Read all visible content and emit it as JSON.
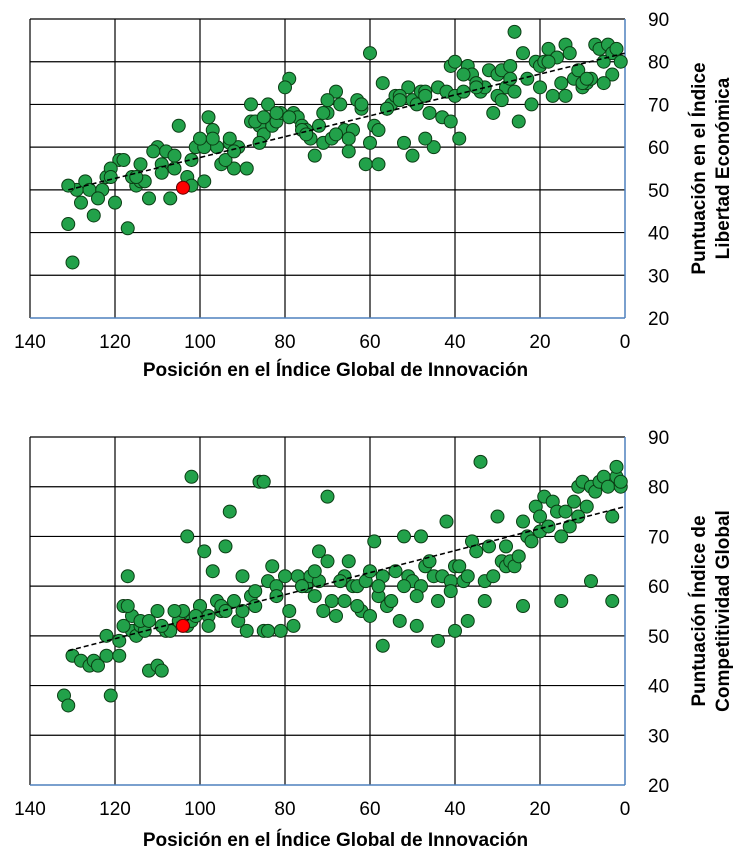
{
  "chart_data": [
    {
      "type": "scatter",
      "xlabel": "Posición en el Índice Global de Innovación",
      "ylabel_lines": [
        "Puntuación en el Índice",
        "Libertad Económica"
      ],
      "xlim": [
        140,
        0
      ],
      "ylim": [
        20,
        90
      ],
      "xticks": [
        140,
        120,
        100,
        80,
        60,
        40,
        20,
        0
      ],
      "yticks": [
        20,
        30,
        40,
        50,
        60,
        70,
        80,
        90
      ],
      "grid": true,
      "point_color": "#22a14a",
      "highlight_color": "#ff0000",
      "trend": {
        "x": [
          131,
          0
        ],
        "y": [
          50,
          82
        ]
      },
      "highlight": {
        "x": 104,
        "y": 50.5
      },
      "x": [
        131,
        130,
        129,
        127,
        126,
        125,
        123,
        122,
        120,
        119,
        117,
        115,
        114,
        112,
        110,
        109,
        108,
        106,
        105,
        103,
        102,
        100,
        99,
        97,
        96,
        95,
        93,
        92,
        91,
        89,
        88,
        86,
        85,
        83,
        82,
        81,
        79,
        78,
        77,
        76,
        75,
        73,
        72,
        71,
        69,
        68,
        67,
        66,
        64,
        63,
        62,
        61,
        60,
        59,
        58,
        56,
        55,
        54,
        52,
        51,
        50,
        48,
        47,
        46,
        44,
        43,
        42,
        41,
        40,
        38,
        37,
        36,
        34,
        33,
        32,
        30,
        29,
        28,
        27,
        26,
        24,
        23,
        22,
        21,
        20,
        18,
        17,
        16,
        14,
        13,
        12,
        10,
        9,
        8,
        7,
        6,
        5,
        4,
        3,
        2,
        1,
        124,
        118,
        116,
        111,
        107,
        101,
        98,
        94,
        87,
        84,
        80,
        74,
        70,
        65,
        57,
        53,
        49,
        45,
        39,
        35,
        31,
        25,
        19,
        15,
        11,
        102,
        88,
        79,
        71,
        65,
        60,
        50,
        41,
        30,
        20,
        10,
        3,
        128,
        121,
        113,
        106,
        99,
        92,
        86,
        76,
        68,
        62,
        56,
        47,
        38,
        29,
        18,
        9,
        121,
        115,
        109,
        100,
        93,
        85,
        75,
        58,
        47,
        35,
        26,
        14,
        5,
        131,
        114,
        97,
        82,
        70,
        53,
        40,
        27
      ],
      "y": [
        42,
        33,
        50,
        52,
        50,
        44,
        50,
        53,
        47,
        57,
        41,
        51,
        52,
        48,
        60,
        56,
        59,
        58,
        65,
        53,
        57,
        61,
        52,
        64,
        60,
        56,
        61,
        55,
        60,
        55,
        66,
        65,
        63,
        65,
        66,
        68,
        76,
        68,
        67,
        65,
        64,
        58,
        65,
        61,
        62,
        73,
        70,
        64,
        64,
        71,
        69,
        56,
        82,
        65,
        56,
        69,
        70,
        72,
        61,
        74,
        71,
        73,
        73,
        68,
        74,
        67,
        73,
        79,
        72,
        73,
        79,
        77,
        73,
        74,
        78,
        77,
        78,
        74,
        79,
        87,
        82,
        76,
        70,
        80,
        79,
        83,
        72,
        81,
        84,
        82,
        76,
        74,
        75,
        76,
        84,
        83,
        80,
        84,
        82,
        83,
        80,
        48,
        57,
        53,
        59,
        48,
        60,
        67,
        57,
        66,
        70,
        74,
        62,
        68,
        59,
        75,
        72,
        70,
        60,
        62,
        75,
        68,
        66,
        80,
        75,
        78,
        51,
        70,
        67,
        68,
        62,
        61,
        58,
        66,
        72,
        74,
        75,
        77,
        47,
        55,
        52,
        55,
        60,
        59,
        61,
        64,
        63,
        70,
        69,
        62,
        77,
        71,
        80,
        76,
        53,
        53,
        54,
        62,
        62,
        67,
        63,
        64,
        72,
        74,
        73,
        72,
        75,
        51,
        56,
        62,
        68,
        71,
        71,
        80,
        76
      ],
      "transform": "none"
    },
    {
      "type": "scatter",
      "xlabel": "Posición en el Índice Global de Innovación",
      "ylabel_lines": [
        "Puntuación Índice de",
        "Competitividad Global"
      ],
      "xlim": [
        140,
        0
      ],
      "ylim": [
        20,
        90
      ],
      "xticks": [
        140,
        120,
        100,
        80,
        60,
        40,
        20,
        0
      ],
      "yticks": [
        20,
        30,
        40,
        50,
        60,
        70,
        80,
        90
      ],
      "grid": true,
      "point_color": "#22a14a",
      "highlight_color": "#ff0000",
      "trend": {
        "x": [
          131,
          0
        ],
        "y": [
          47,
          76
        ]
      },
      "highlight": {
        "x": 104,
        "y": 52
      },
      "x": [
        132,
        131,
        130,
        128,
        126,
        125,
        124,
        122,
        121,
        119,
        118,
        117,
        116,
        115,
        114,
        113,
        112,
        110,
        109,
        108,
        107,
        105,
        104,
        103,
        102,
        100,
        99,
        98,
        97,
        95,
        94,
        93,
        92,
        91,
        90,
        88,
        87,
        86,
        85,
        84,
        83,
        82,
        81,
        80,
        79,
        77,
        76,
        75,
        74,
        73,
        72,
        71,
        70,
        69,
        68,
        66,
        65,
        64,
        63,
        62,
        61,
        60,
        59,
        58,
        57,
        56,
        55,
        54,
        53,
        52,
        51,
        50,
        49,
        48,
        47,
        46,
        45,
        44,
        43,
        42,
        41,
        40,
        39,
        38,
        37,
        36,
        35,
        34,
        33,
        32,
        31,
        30,
        29,
        28,
        27,
        26,
        25,
        24,
        23,
        22,
        21,
        20,
        19,
        18,
        17,
        16,
        15,
        14,
        13,
        12,
        11,
        10,
        9,
        8,
        7,
        6,
        5,
        4,
        3,
        2,
        1,
        119,
        118,
        116,
        114,
        112,
        110,
        106,
        103,
        102,
        100,
        98,
        96,
        95,
        90,
        89,
        85,
        84,
        78,
        76,
        72,
        70,
        67,
        63,
        60,
        57,
        52,
        48,
        44,
        40,
        37,
        33,
        28,
        24,
        20,
        15,
        11,
        8,
        3,
        2,
        1,
        122,
        117,
        109,
        101,
        94,
        87,
        82,
        73,
        66,
        58,
        49,
        41
      ],
      "y": [
        38,
        36,
        46,
        45,
        44,
        45,
        44,
        46,
        38,
        46,
        56,
        62,
        51,
        50,
        52,
        51,
        43,
        44,
        43,
        51,
        51,
        53,
        55,
        52,
        53,
        56,
        67,
        54,
        63,
        55,
        68,
        75,
        57,
        53,
        55,
        58,
        59,
        81,
        51,
        61,
        64,
        60,
        51,
        62,
        55,
        62,
        60,
        60,
        62,
        58,
        61,
        55,
        78,
        57,
        54,
        62,
        65,
        60,
        60,
        55,
        61,
        63,
        69,
        58,
        62,
        56,
        57,
        63,
        53,
        70,
        62,
        61,
        52,
        60,
        64,
        65,
        62,
        49,
        62,
        73,
        61,
        64,
        64,
        61,
        62,
        69,
        67,
        85,
        61,
        68,
        62,
        74,
        65,
        64,
        65,
        64,
        66,
        56,
        70,
        69,
        76,
        71,
        78,
        72,
        77,
        75,
        70,
        75,
        72,
        77,
        80,
        81,
        76,
        80,
        79,
        81,
        82,
        80,
        74,
        82,
        80,
        49,
        52,
        54,
        53,
        53,
        55,
        55,
        70,
        82,
        56,
        52,
        57,
        56,
        62,
        51,
        81,
        51,
        52,
        60,
        67,
        65,
        61,
        56,
        54,
        48,
        60,
        70,
        57,
        51,
        53,
        57,
        68,
        73,
        74,
        57,
        74,
        61,
        57,
        84,
        81,
        50,
        56,
        52,
        54,
        55,
        56,
        58,
        63,
        57,
        60,
        58,
        59
      ],
      "transform": "none"
    }
  ]
}
